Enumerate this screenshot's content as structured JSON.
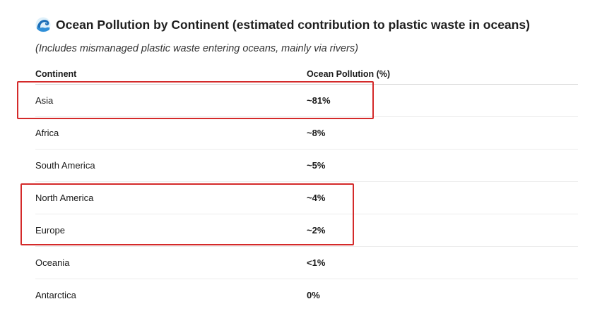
{
  "header": {
    "title": "Ocean Pollution by Continent (estimated contribution to plastic waste in oceans)",
    "icon": "water-wave-icon",
    "subtitle": "(Includes mismanaged plastic waste entering oceans, mainly via rivers)"
  },
  "table": {
    "columns": [
      "Continent",
      "Ocean Pollution (%)"
    ],
    "rows": [
      {
        "continent": "Asia",
        "pollution": "~81%"
      },
      {
        "continent": "Africa",
        "pollution": "~8%"
      },
      {
        "continent": "South America",
        "pollution": "~5%"
      },
      {
        "continent": "North America",
        "pollution": "~4%"
      },
      {
        "continent": "Europe",
        "pollution": "~2%"
      },
      {
        "continent": "Oceania",
        "pollution": "<1%"
      },
      {
        "continent": "Antarctica",
        "pollution": "0%"
      }
    ]
  },
  "highlights": {
    "color": "#d42a2a",
    "groups": [
      [
        "Asia"
      ],
      [
        "North America",
        "Europe"
      ]
    ]
  }
}
